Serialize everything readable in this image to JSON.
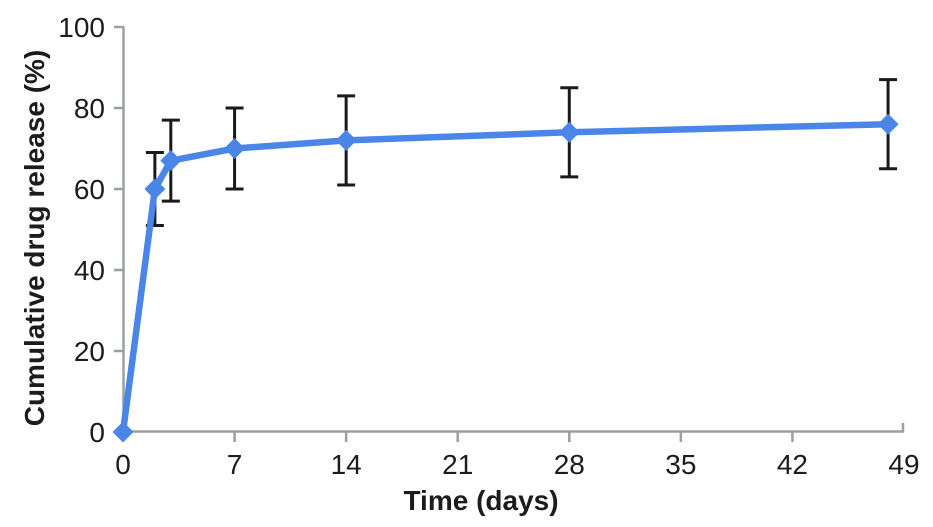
{
  "chart_data": {
    "type": "line",
    "title": "",
    "xlabel": "Time (days)",
    "ylabel": "Cumulative drug release (%)",
    "xlim": [
      0,
      49
    ],
    "ylim": [
      0,
      100
    ],
    "x_ticks": [
      0,
      7,
      14,
      21,
      28,
      35,
      42,
      49
    ],
    "y_ticks": [
      0,
      20,
      40,
      60,
      80,
      100
    ],
    "grid": false,
    "legend_position": "none",
    "series": [
      {
        "name": "Cumulative drug release",
        "marker": "diamond",
        "line_color": "#4a86e8",
        "error_bar_color": "#1a1a1a",
        "points": [
          {
            "x": 0,
            "y": 0,
            "err": 0
          },
          {
            "x": 2,
            "y": 60,
            "err": 9
          },
          {
            "x": 3,
            "y": 67,
            "err": 10
          },
          {
            "x": 7,
            "y": 70,
            "err": 10
          },
          {
            "x": 14,
            "y": 72,
            "err": 11
          },
          {
            "x": 28,
            "y": 74,
            "err": 11
          },
          {
            "x": 48,
            "y": 76,
            "err": 11
          }
        ]
      }
    ],
    "axis_color": "#9aa1a1",
    "text_color": "#1c1c1c"
  }
}
